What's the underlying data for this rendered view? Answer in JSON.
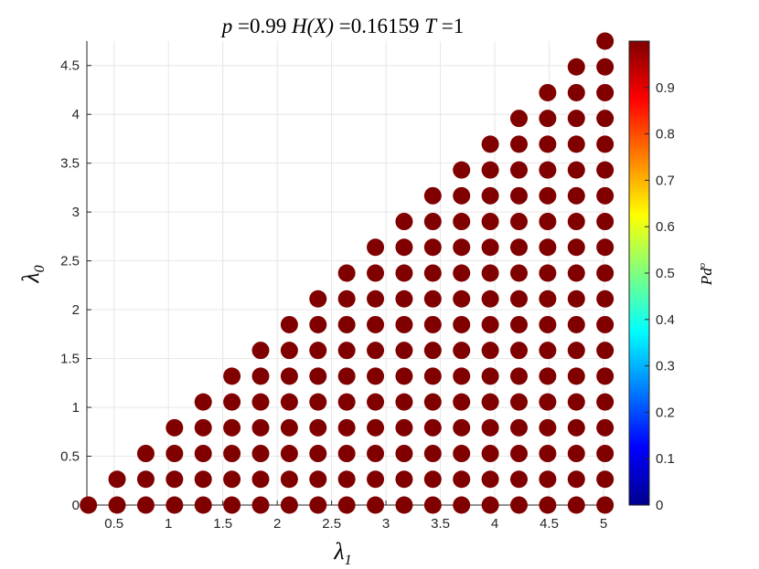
{
  "chart_data": {
    "type": "scatter",
    "title_parts": {
      "p_label": "p",
      "p_value": "0.99",
      "h_label": "H(X)",
      "h_value": "0.16159",
      "t_label": "T",
      "t_value": "1"
    },
    "xlabel": {
      "base": "λ",
      "sub": "1"
    },
    "ylabel": {
      "base": "λ",
      "sub": "0"
    },
    "colorbar_label": {
      "base": "Pd",
      "sup": "o"
    },
    "xlim": [
      0.25,
      5.0
    ],
    "ylim": [
      0,
      4.75
    ],
    "xticks": [
      "0.5",
      "1",
      "1.5",
      "2",
      "2.5",
      "3",
      "3.5",
      "4",
      "4.5",
      "5"
    ],
    "yticks": [
      "0",
      "0.5",
      "1",
      "1.5",
      "2",
      "2.5",
      "3",
      "3.5",
      "4",
      "4.5"
    ],
    "colorbar_ticks": [
      "0",
      "0.1",
      "0.2",
      "0.3",
      "0.4",
      "0.5",
      "0.6",
      "0.7",
      "0.8",
      "0.9"
    ],
    "colorbar_range": [
      0,
      1
    ],
    "colormap": "jet",
    "grid": true,
    "marker_color": "#800000",
    "point_grid": {
      "description_rule": "points at x = k*step, y = j*step for j <= k",
      "step": 0.26389,
      "x_count": 19,
      "value": 1.0
    }
  }
}
